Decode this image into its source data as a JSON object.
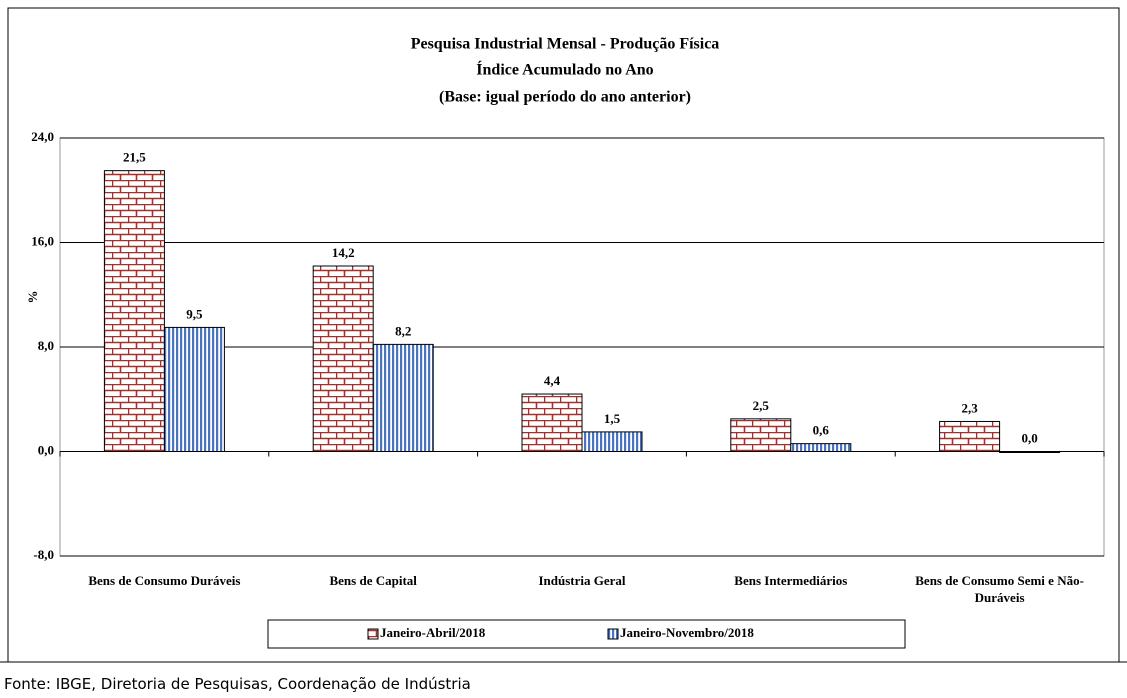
{
  "chart_data": {
    "type": "bar",
    "title": [
      "Pesquisa Industrial Mensal - Produção Física",
      "Índice Acumulado no Ano",
      "(Base: igual período do ano anterior)"
    ],
    "y_label": "%",
    "categories": [
      "Bens de Consumo Duráveis",
      "Bens de Capital",
      "Indústria Geral",
      "Bens Intermediários",
      "Bens de Consumo Semi e Não-Duráveis"
    ],
    "series": [
      {
        "name": "Janeiro-Abril/2018",
        "color": "#a3302a",
        "pattern": "brick",
        "values": [
          21.5,
          14.2,
          4.4,
          2.5,
          2.3
        ],
        "value_labels": [
          "21,5",
          "14,2",
          "4,4",
          "2,5",
          "2,3"
        ]
      },
      {
        "name": "Janeiro-Novembro/2018",
        "color": "#4a74c0",
        "pattern": "stripes",
        "values": [
          9.5,
          8.2,
          1.5,
          0.6,
          0.0
        ],
        "value_labels": [
          "9,5",
          "8,2",
          "1,5",
          "0,6",
          "0,0"
        ]
      }
    ],
    "ylim": [
      -8,
      24
    ],
    "yticks": [
      {
        "value": -8,
        "label": "-8,0"
      },
      {
        "value": 0,
        "label": "0,0"
      },
      {
        "value": 8,
        "label": "8,0"
      },
      {
        "value": 16,
        "label": "16,0"
      },
      {
        "value": 24,
        "label": "24,0"
      }
    ],
    "grid": true,
    "legend": "bottom"
  },
  "footer": "Fonte: IBGE, Diretoria de Pesquisas, Coordenação de Indústria"
}
